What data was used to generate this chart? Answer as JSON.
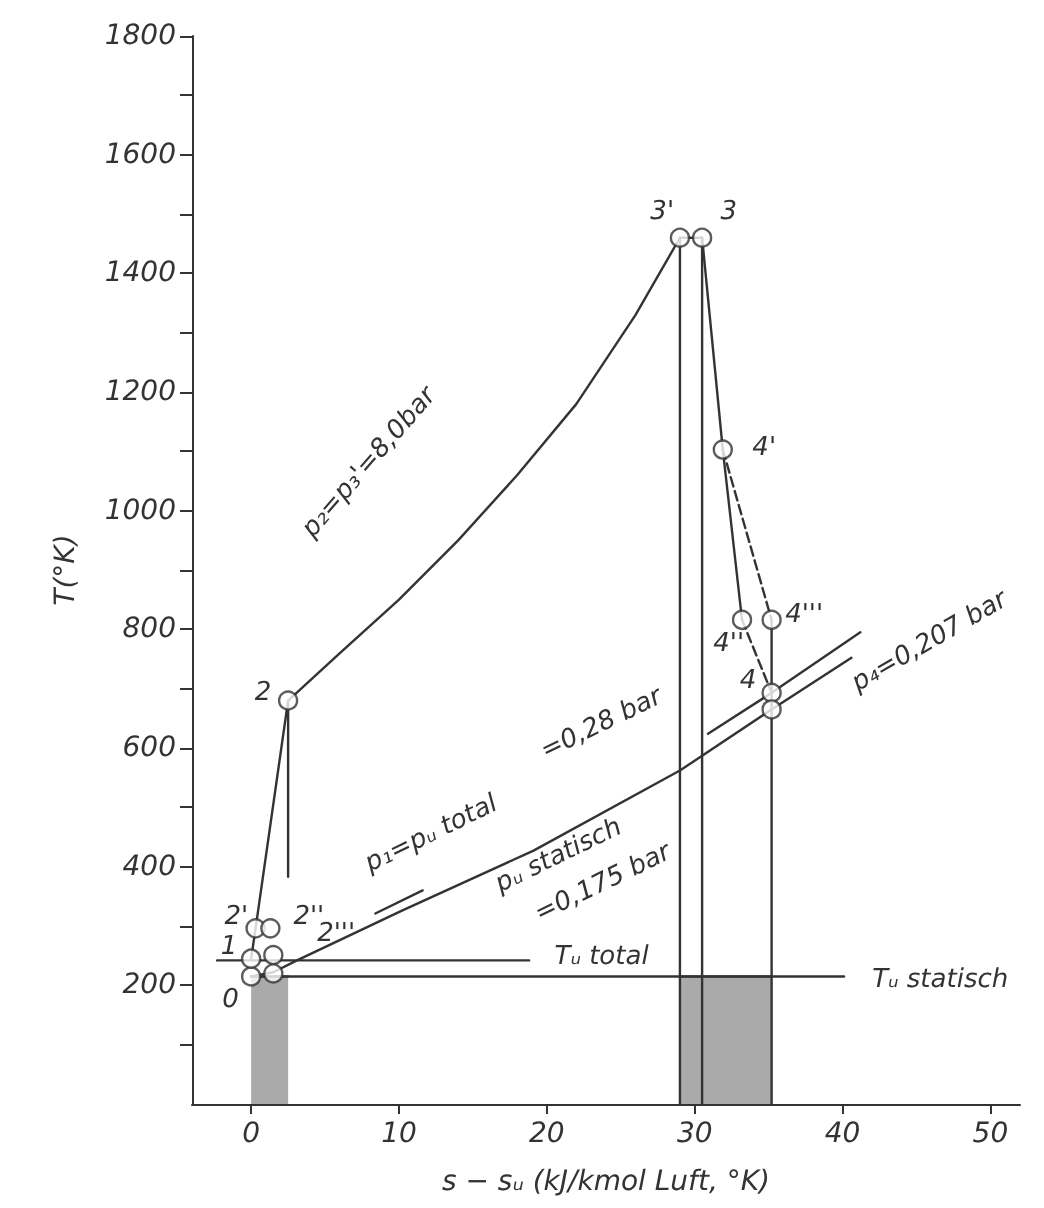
{
  "chart_data": {
    "type": "line",
    "xlabel": "s − sᵤ (kJ/kmol Luft, °K)",
    "ylabel": "T(°K)",
    "xlim": [
      -4,
      52
    ],
    "xticks": [
      0,
      10,
      20,
      30,
      40,
      50
    ],
    "ylim": [
      0,
      1800
    ],
    "yticks": [
      {
        "value": 100,
        "label": null
      },
      200,
      {
        "value": 300,
        "label": null
      },
      400,
      {
        "value": 500,
        "label": null
      },
      600,
      {
        "value": 700,
        "label": null
      },
      800,
      {
        "value": 900,
        "label": null
      },
      1000,
      {
        "value": 1100,
        "label": null
      },
      1200,
      {
        "value": 1300,
        "label": null
      },
      1400,
      {
        "value": 1500,
        "label": null
      },
      1600,
      {
        "value": 1700,
        "label": null
      },
      1800
    ],
    "grid": false,
    "series": [
      {
        "color": "#333333",
        "x": [
          0,
          0.3,
          2.5
        ],
        "values": [
          245,
          296,
          680
        ]
      },
      {
        "color": "#333333",
        "x": [
          2.5,
          6,
          10,
          14,
          18,
          22,
          26,
          29
        ],
        "values": [
          680,
          760,
          850,
          950,
          1060,
          1180,
          1330,
          1460
        ]
      },
      {
        "color": "#333333",
        "x": [
          29,
          30.5
        ],
        "values": [
          1460,
          1460
        ]
      },
      {
        "color": "#333333",
        "x": [
          30.5,
          31.9,
          33.2
        ],
        "values": [
          1460,
          1103,
          816
        ]
      },
      {
        "color": "#333333",
        "x": [
          31.9,
          35.2
        ],
        "values": [
          1103,
          816
        ],
        "line_style": "dashed"
      },
      {
        "color": "#333333",
        "x": [
          33.2,
          35.2
        ],
        "values": [
          816,
          693
        ],
        "line_style": "dashed"
      },
      {
        "color": "#333333",
        "x": [
          2.5,
          2.5
        ],
        "values": [
          680,
          383
        ]
      },
      {
        "color": "#333333",
        "x": [
          29,
          29
        ],
        "values": [
          1460,
          0
        ]
      },
      {
        "color": "#333333",
        "x": [
          30.5,
          30.5
        ],
        "values": [
          1460,
          0
        ]
      },
      {
        "color": "#333333",
        "x": [
          35.2,
          35.2
        ],
        "values": [
          816,
          0
        ]
      },
      {
        "color": "#333333",
        "x": [
          0,
          1.5,
          3.1,
          10.2,
          19.1,
          29,
          35.2,
          40.6
        ],
        "values": [
          215,
          222,
          242,
          326,
          427,
          562,
          665,
          752
        ]
      },
      {
        "color": "#333333",
        "x": [
          30.9,
          35.2,
          41.2
        ],
        "values": [
          624,
          693,
          795
        ]
      },
      {
        "color": "#333333",
        "x": [
          8.4,
          11.6
        ],
        "values": [
          321,
          360
        ]
      },
      {
        "color": "#333333",
        "x": [
          -2.3,
          18.8
        ],
        "values": [
          242,
          242
        ]
      },
      {
        "color": "#333333",
        "x": [
          0,
          40.1
        ],
        "values": [
          215,
          215
        ]
      },
      {
        "type": "area",
        "color": "#555555",
        "x": [
          0,
          2.5
        ],
        "values": [
          215,
          215
        ]
      },
      {
        "type": "area",
        "color": "#555555",
        "x": [
          29,
          35.2
        ],
        "values": [
          215,
          215
        ]
      },
      {
        "type": "scatter",
        "color": "#333333",
        "marker": "circle",
        "x": [
          0,
          0,
          0.3,
          1.3,
          1.5,
          1.5,
          2.5,
          29,
          30.5,
          31.9,
          33.2,
          35.2,
          35.2,
          35.2
        ],
        "values": [
          215,
          245,
          296,
          296,
          251,
          220,
          680,
          1460,
          1460,
          1103,
          816,
          816,
          693,
          665
        ]
      }
    ],
    "annotations": [
      "0",
      "1",
      "2'",
      "2''",
      "2'''",
      "2",
      "3'",
      "3",
      "4'",
      "4''",
      "4'''",
      "4",
      "p₂=p₃'=8,0bar",
      "p₄=0,207 bar",
      "p₁=pᵤ total",
      "=0,28 bar",
      "pᵤ statisch",
      "=0,175 bar",
      "Tᵤ total",
      "Tᵤ statisch"
    ]
  }
}
